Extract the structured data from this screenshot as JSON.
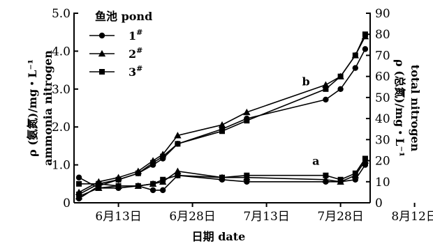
{
  "chart_data": {
    "type": "line",
    "x_tick_labels": [
      "6月13日",
      "6月28日",
      "7月13日",
      "7月28日",
      "8月12日"
    ],
    "xlabel": "日期 date",
    "ylabel_left": [
      "ρ (氨氮)/mg・L⁻¹",
      "ammonia nitrogen"
    ],
    "ylabel_right": [
      "ρ (总氮)/mg・L⁻¹",
      "total nitrogen"
    ],
    "y_left": {
      "range": [
        0,
        5.0
      ],
      "ticks": [
        "0",
        "1.0",
        "2.0",
        "3.0",
        "4.0",
        "5.0"
      ]
    },
    "y_right": {
      "range": [
        0,
        90
      ],
      "ticks": [
        "0",
        "10",
        "20",
        "30",
        "40",
        "50",
        "60",
        "70",
        "80",
        "90"
      ]
    },
    "x_domain_days": [
      4,
      64
    ],
    "x_tick_days": [
      13,
      28,
      43,
      58,
      73
    ],
    "legend": {
      "title": "鱼池 pond",
      "placement": "top-left",
      "entries": [
        {
          "label": "1",
          "sup": "#",
          "marker": "circle"
        },
        {
          "label": "2",
          "sup": "#",
          "marker": "triangle"
        },
        {
          "label": "3",
          "sup": "#",
          "marker": "square"
        }
      ]
    },
    "annotations": [
      {
        "text": "a",
        "x": 53,
        "y": 1.0,
        "axis": "left"
      },
      {
        "text": "b",
        "x": 51,
        "y": 3.1,
        "axis": "left"
      }
    ],
    "series": [
      {
        "group": "a",
        "axis": "right",
        "marker": "circle",
        "x": [
          5,
          9,
          13,
          17,
          20,
          22,
          25,
          34,
          39,
          55,
          58,
          61,
          63
        ],
        "y": [
          12,
          7,
          7,
          8,
          6,
          6,
          13,
          11,
          10,
          10,
          10,
          11,
          18
        ]
      },
      {
        "group": "a",
        "axis": "right",
        "marker": "triangle",
        "x": [
          5,
          9,
          13,
          17,
          20,
          22,
          25,
          34,
          39,
          55,
          58,
          61,
          63
        ],
        "y": [
          3,
          7,
          8,
          8,
          9,
          10,
          15,
          12,
          12,
          11,
          10,
          13,
          20
        ]
      },
      {
        "group": "a",
        "axis": "right",
        "marker": "square",
        "x": [
          5,
          9,
          13,
          17,
          20,
          22,
          25,
          34,
          39,
          55,
          58,
          61,
          63
        ],
        "y": [
          9,
          9,
          8,
          8,
          9,
          11,
          13,
          12,
          13,
          13,
          11,
          14,
          21
        ]
      },
      {
        "group": "b",
        "axis": "right",
        "marker": "circle",
        "x": [
          5,
          9,
          13,
          17,
          20,
          22,
          25,
          34,
          39,
          55,
          58,
          61,
          63
        ],
        "y": [
          2,
          8,
          11,
          14,
          18,
          21,
          28,
          35,
          40,
          49,
          54,
          64,
          73
        ]
      },
      {
        "group": "b",
        "axis": "right",
        "marker": "triangle",
        "x": [
          5,
          9,
          13,
          17,
          20,
          22,
          25,
          34,
          39,
          55,
          58,
          61,
          63
        ],
        "y": [
          5,
          10,
          12,
          15,
          20,
          23,
          32,
          37,
          43,
          56,
          60,
          70,
          79
        ]
      },
      {
        "group": "b",
        "axis": "right",
        "marker": "square",
        "x": [
          5,
          9,
          13,
          17,
          20,
          22,
          25,
          34,
          39,
          55,
          58,
          61,
          63
        ],
        "y": [
          4,
          9,
          11,
          14,
          19,
          22,
          28,
          34,
          39,
          54,
          60,
          70,
          80
        ]
      }
    ]
  }
}
